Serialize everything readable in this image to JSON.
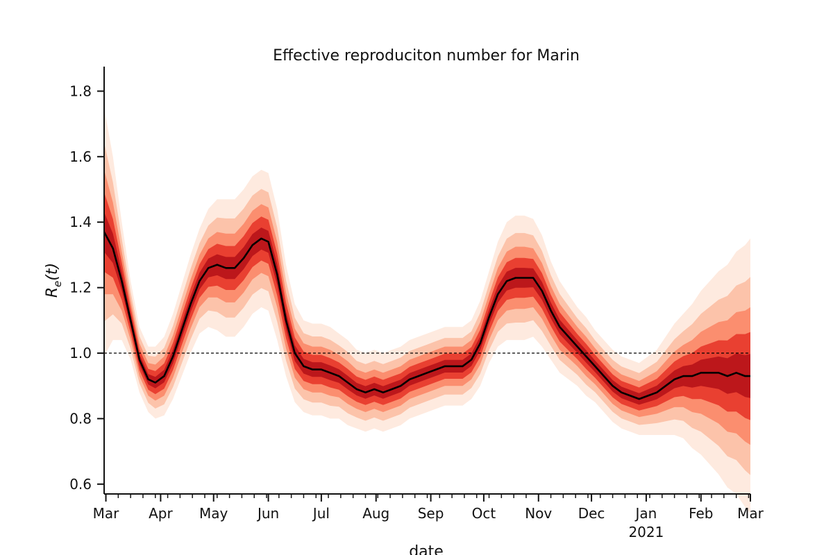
{
  "chart_data": {
    "type": "line",
    "title": "Effective reproduciton number for Marin",
    "xlabel": "date",
    "ylabel_main": "R",
    "ylabel_sub": "e",
    "ylabel_arg": "(t)",
    "xlim": [
      "2020-02-29",
      "2021-03-01"
    ],
    "ylim": [
      0.57,
      1.875
    ],
    "yticks": [
      0.6,
      0.8,
      1.0,
      1.2,
      1.4,
      1.6,
      1.8
    ],
    "ytick_labels": [
      "0.6",
      "0.8",
      "1.0",
      "1.2",
      "1.4",
      "1.6",
      "1.8"
    ],
    "xticks": [
      {
        "date": "2020-03-01",
        "label": "Mar"
      },
      {
        "date": "2020-04-01",
        "label": "Apr"
      },
      {
        "date": "2020-05-01",
        "label": "May"
      },
      {
        "date": "2020-06-01",
        "label": "Jun"
      },
      {
        "date": "2020-07-01",
        "label": "Jul"
      },
      {
        "date": "2020-08-01",
        "label": "Aug"
      },
      {
        "date": "2020-09-01",
        "label": "Sep"
      },
      {
        "date": "2020-10-01",
        "label": "Oct"
      },
      {
        "date": "2020-11-01",
        "label": "Nov"
      },
      {
        "date": "2020-12-01",
        "label": "Dec"
      },
      {
        "date": "2021-01-01",
        "label": "Jan"
      },
      {
        "date": "2021-02-01",
        "label": "Feb"
      },
      {
        "date": "2021-03-01",
        "label": "Mar"
      }
    ],
    "year_label": "2021",
    "reference_line": {
      "y": 1.0,
      "style": "dashed",
      "color": "#000000"
    },
    "series": [
      {
        "color": "#000000",
        "x": [
          "2020-02-29",
          "2020-03-05",
          "2020-03-10",
          "2020-03-15",
          "2020-03-20",
          "2020-03-25",
          "2020-03-29",
          "2020-04-03",
          "2020-04-08",
          "2020-04-13",
          "2020-04-18",
          "2020-04-23",
          "2020-04-28",
          "2020-05-03",
          "2020-05-08",
          "2020-05-13",
          "2020-05-18",
          "2020-05-23",
          "2020-05-28",
          "2020-06-01",
          "2020-06-06",
          "2020-06-11",
          "2020-06-16",
          "2020-06-21",
          "2020-06-26",
          "2020-07-01",
          "2020-07-06",
          "2020-07-11",
          "2020-07-16",
          "2020-07-21",
          "2020-07-26",
          "2020-07-31",
          "2020-08-05",
          "2020-08-10",
          "2020-08-15",
          "2020-08-20",
          "2020-08-25",
          "2020-08-30",
          "2020-09-04",
          "2020-09-09",
          "2020-09-14",
          "2020-09-19",
          "2020-09-24",
          "2020-09-29",
          "2020-10-04",
          "2020-10-09",
          "2020-10-14",
          "2020-10-19",
          "2020-10-24",
          "2020-10-29",
          "2020-11-03",
          "2020-11-08",
          "2020-11-13",
          "2020-11-18",
          "2020-11-23",
          "2020-11-28",
          "2020-12-03",
          "2020-12-08",
          "2020-12-13",
          "2020-12-18",
          "2020-12-23",
          "2020-12-28",
          "2021-01-02",
          "2021-01-07",
          "2021-01-12",
          "2021-01-17",
          "2021-01-22",
          "2021-01-27",
          "2021-02-01",
          "2021-02-06",
          "2021-02-11",
          "2021-02-16",
          "2021-02-21",
          "2021-02-26",
          "2021-03-01"
        ],
        "y": [
          1.37,
          1.32,
          1.22,
          1.1,
          0.98,
          0.92,
          0.91,
          0.93,
          0.99,
          1.07,
          1.15,
          1.22,
          1.26,
          1.27,
          1.26,
          1.26,
          1.29,
          1.33,
          1.35,
          1.34,
          1.24,
          1.1,
          1.0,
          0.96,
          0.95,
          0.95,
          0.94,
          0.93,
          0.91,
          0.89,
          0.88,
          0.89,
          0.88,
          0.89,
          0.9,
          0.92,
          0.93,
          0.94,
          0.95,
          0.96,
          0.96,
          0.96,
          0.98,
          1.03,
          1.11,
          1.18,
          1.22,
          1.23,
          1.23,
          1.23,
          1.19,
          1.13,
          1.08,
          1.05,
          1.02,
          0.99,
          0.96,
          0.93,
          0.9,
          0.88,
          0.87,
          0.86,
          0.87,
          0.88,
          0.9,
          0.92,
          0.93,
          0.93,
          0.94,
          0.94,
          0.94,
          0.93,
          0.94,
          0.93,
          0.93
        ]
      }
    ],
    "uncertainty": {
      "colormap": "Reds",
      "band_colors": [
        "#fee8dc",
        "#fcbfa5",
        "#fb8a6a",
        "#e7392b",
        "#b71319"
      ],
      "halfwidth": [
        0.38,
        0.28,
        0.18,
        0.12,
        0.1,
        0.1,
        0.11,
        0.12,
        0.13,
        0.14,
        0.15,
        0.16,
        0.18,
        0.2,
        0.21,
        0.21,
        0.21,
        0.21,
        0.21,
        0.21,
        0.2,
        0.17,
        0.15,
        0.14,
        0.14,
        0.14,
        0.14,
        0.13,
        0.13,
        0.12,
        0.12,
        0.12,
        0.12,
        0.12,
        0.12,
        0.12,
        0.12,
        0.12,
        0.12,
        0.12,
        0.12,
        0.12,
        0.12,
        0.13,
        0.14,
        0.16,
        0.18,
        0.19,
        0.19,
        0.18,
        0.17,
        0.15,
        0.14,
        0.13,
        0.12,
        0.12,
        0.11,
        0.11,
        0.11,
        0.11,
        0.11,
        0.11,
        0.12,
        0.13,
        0.15,
        0.17,
        0.19,
        0.22,
        0.25,
        0.28,
        0.31,
        0.34,
        0.37,
        0.4,
        0.42
      ]
    }
  }
}
